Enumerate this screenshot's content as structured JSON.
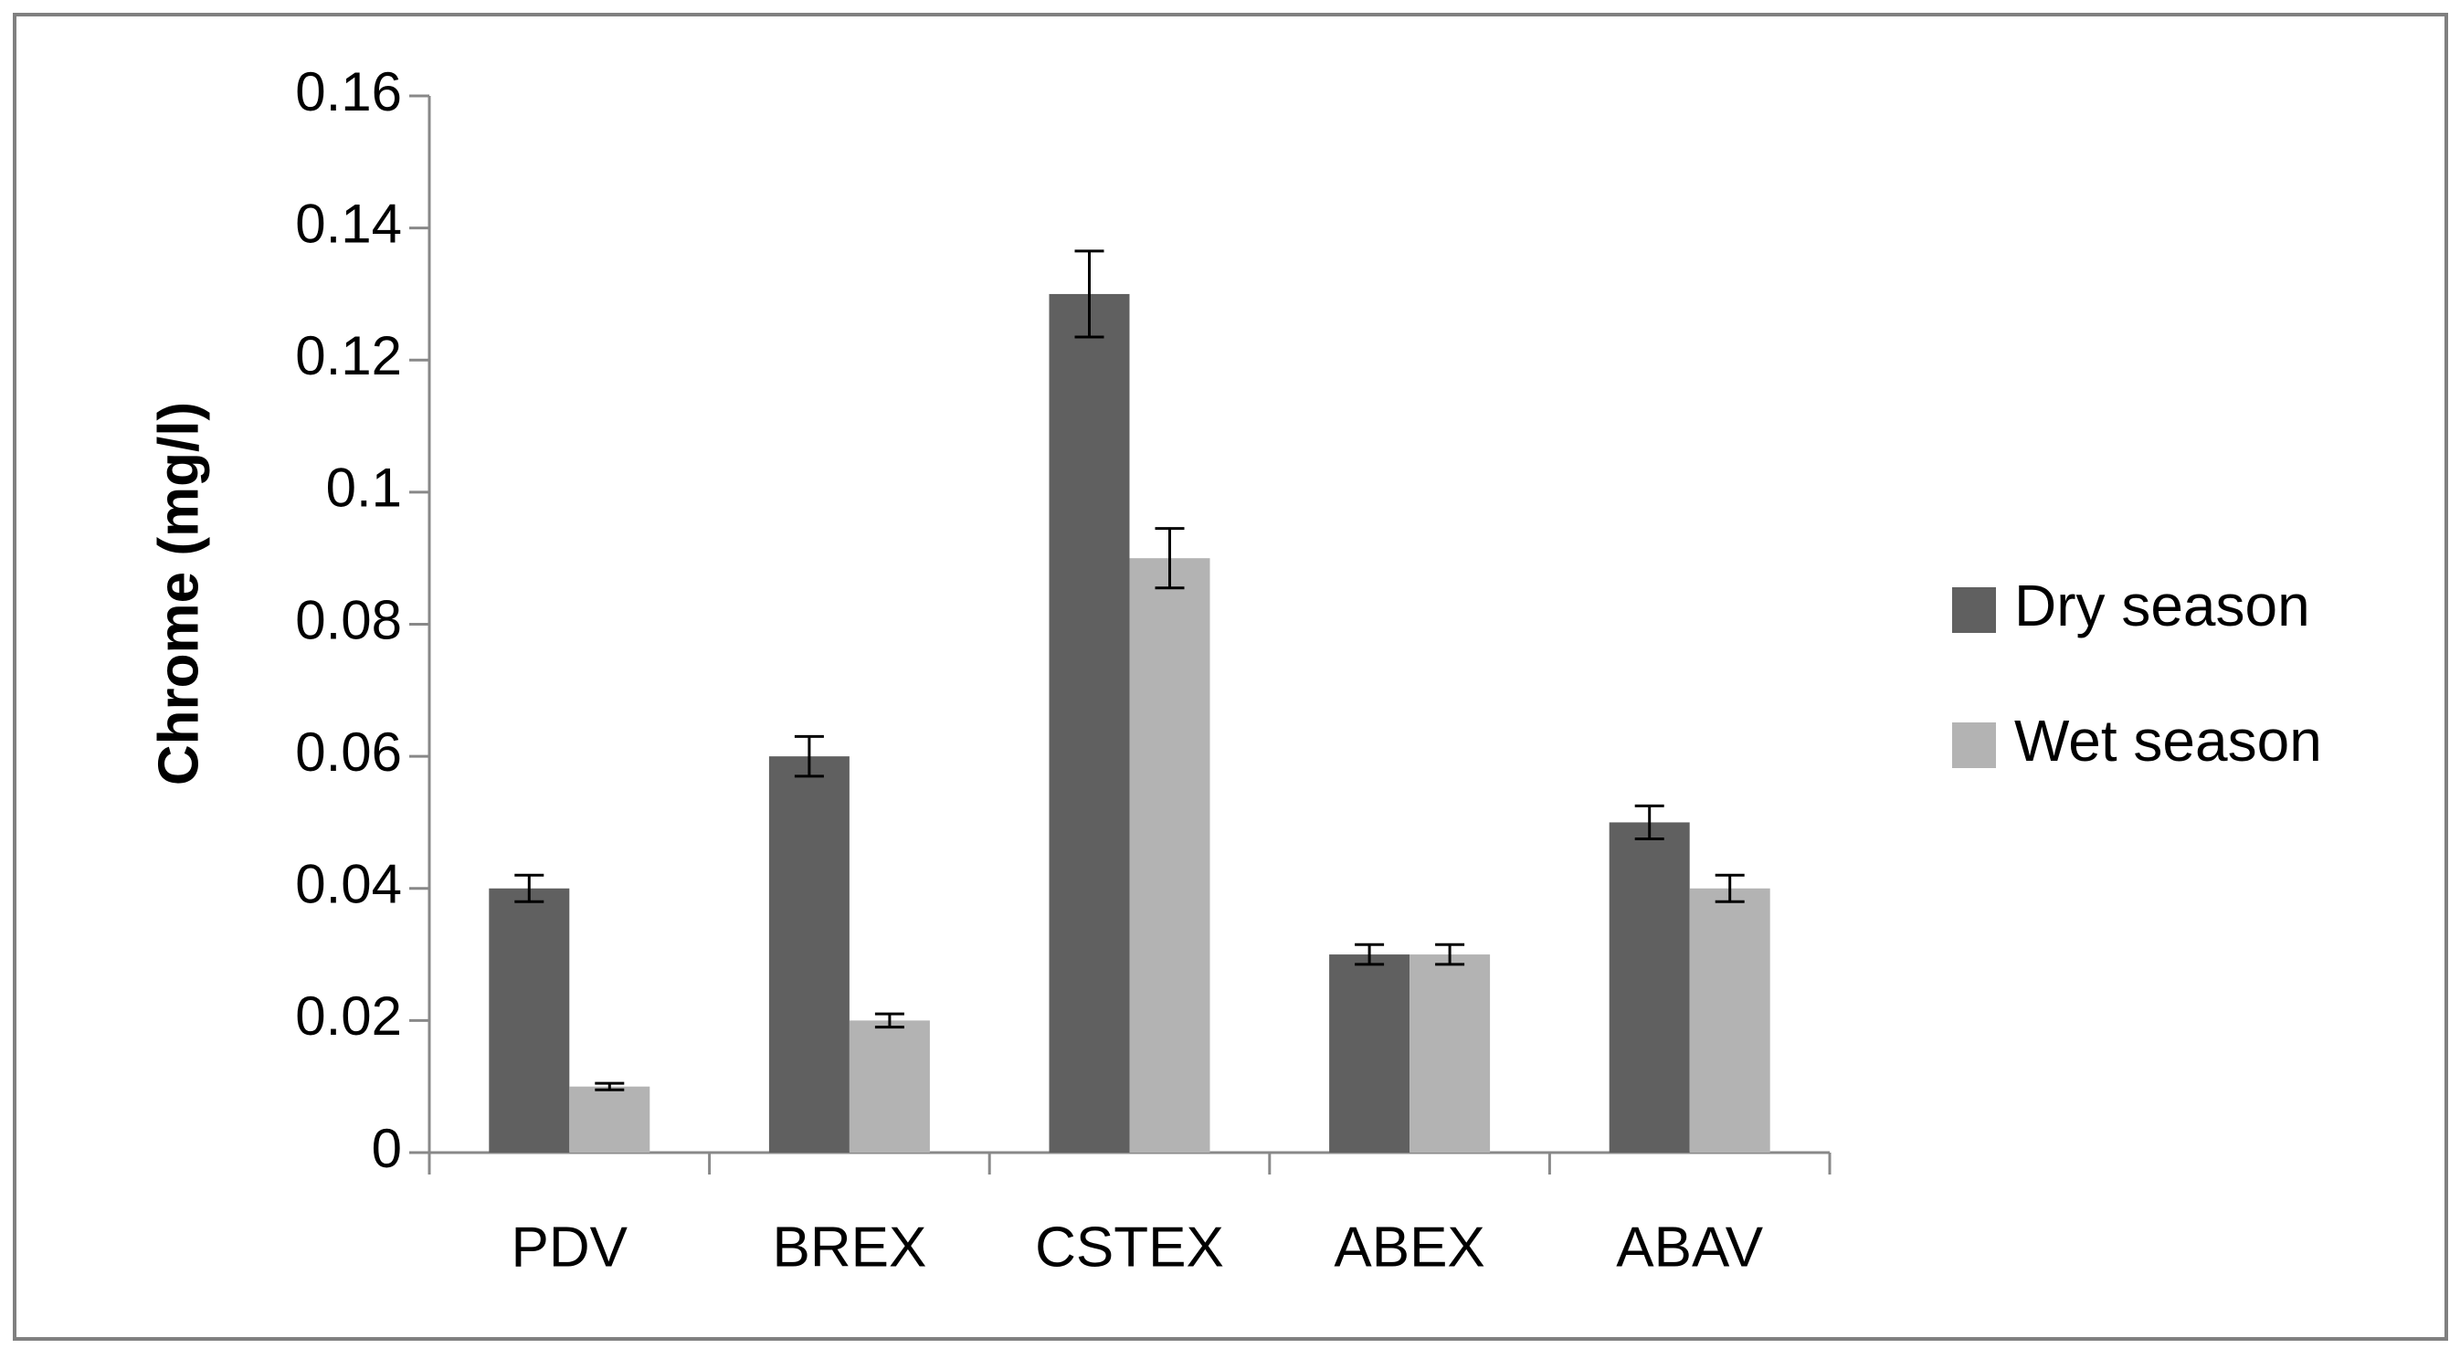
{
  "chart_data": {
    "type": "bar",
    "title": "",
    "xlabel": "",
    "ylabel": "Chrome (mg/l)",
    "ylim": [
      0,
      0.16
    ],
    "yticks": [
      "0",
      "0.02",
      "0.04",
      "0.06",
      "0.08",
      "0.1",
      "0.12",
      "0.14",
      "0.16"
    ],
    "ytick_values": [
      0,
      0.02,
      0.04,
      0.06,
      0.08,
      0.1,
      0.12,
      0.14,
      0.16
    ],
    "categories": [
      "PDV",
      "BREX",
      "CSTEX",
      "ABEX",
      "ABAV"
    ],
    "series": [
      {
        "name": "Dry season",
        "color": "#606060",
        "values": [
          0.04,
          0.06,
          0.13,
          0.03,
          0.05
        ],
        "errors": [
          0.002,
          0.003,
          0.0065,
          0.0015,
          0.0025
        ]
      },
      {
        "name": "Wet season",
        "color": "#b3b3b3",
        "values": [
          0.01,
          0.02,
          0.09,
          0.03,
          0.04
        ],
        "errors": [
          0.0005,
          0.001,
          0.0045,
          0.0015,
          0.002
        ]
      }
    ],
    "legend_position": "right",
    "grid": false
  }
}
